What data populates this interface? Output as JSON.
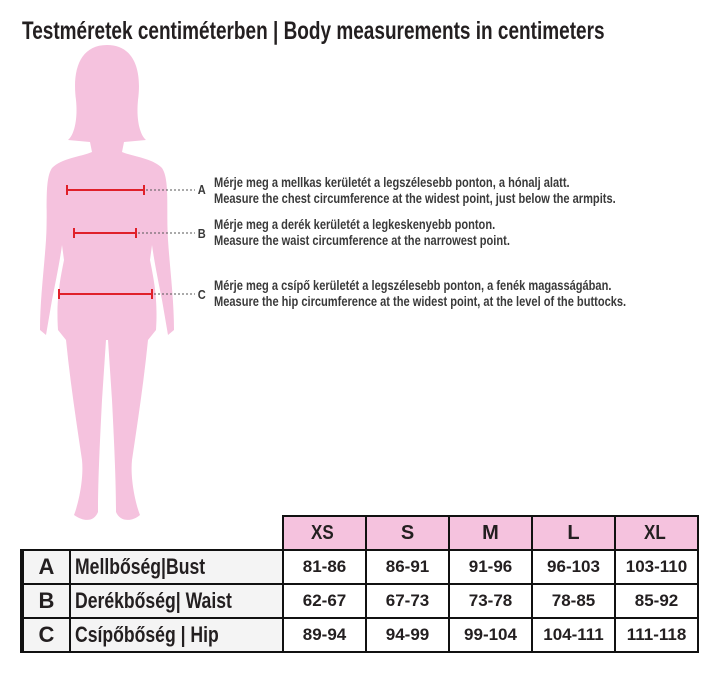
{
  "title": "Testméretek centiméterben | Body measurements in centimeters",
  "silhouette_color": "#f5c2de",
  "marker_color": "#e0202a",
  "measures": [
    {
      "letter": "A",
      "hu": "Mérje meg a mellkas kerületét a legszélesebb ponton, a hónalj alatt.",
      "en": "Measure the chest circumference at the widest point, just below the armpits."
    },
    {
      "letter": "B",
      "hu": "Mérje meg a derék kerületét a legkeskenyebb ponton.",
      "en": "Measure the waist circumference at the narrowest point."
    },
    {
      "letter": "C",
      "hu": "Mérje meg a csípő kerületét a legszélesebb ponton, a fenék magasságában.",
      "en": "Measure the hip circumference at the widest point, at the level of the buttocks."
    }
  ],
  "table": {
    "sizes": [
      "XS",
      "S",
      "M",
      "L",
      "XL"
    ],
    "rows": [
      {
        "letter": "A",
        "label": "Mellbőség|Bust",
        "values": [
          "81-86",
          "86-91",
          "91-96",
          "96-103",
          "103-110"
        ]
      },
      {
        "letter": "B",
        "label": "Derékbőség| Waist",
        "values": [
          "62-67",
          "67-73",
          "73-78",
          "78-85",
          "85-92"
        ]
      },
      {
        "letter": "C",
        "label": "Csípőbőség | Hip",
        "values": [
          "89-94",
          "94-99",
          "99-104",
          "104-111",
          "111-118"
        ]
      }
    ]
  }
}
